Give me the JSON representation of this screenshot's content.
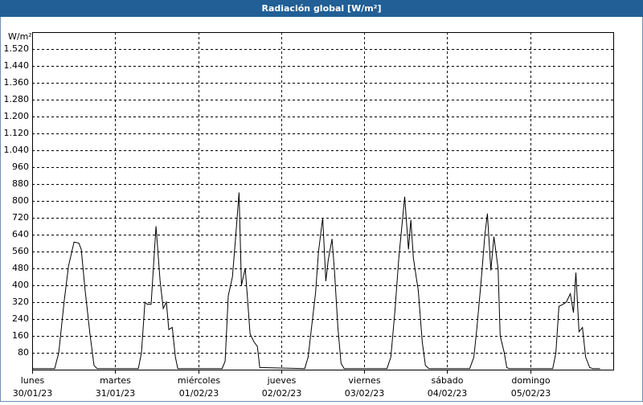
{
  "chart_data": {
    "type": "line",
    "title": "Radiación global [W/m²]",
    "y_unit": "W/m²",
    "x": [
      0,
      6.5,
      7.7,
      9.3,
      10.5,
      12.1,
      13.5,
      14.2,
      15.3,
      16.7,
      17.9,
      18.8,
      30.7,
      31.6,
      32.6,
      33.3,
      34.4,
      35.8,
      37.0,
      37.9,
      38.8,
      39.5,
      40.5,
      41.4,
      42.1,
      54.9,
      55.8,
      56.7,
      57.9,
      58.8,
      59.8,
      60.5,
      61.6,
      62.3,
      63.0,
      64.2,
      65.1,
      65.8,
      78.8,
      79.8,
      80.9,
      81.9,
      82.8,
      84.0,
      84.9,
      85.6,
      86.7,
      87.4,
      88.4,
      89.3,
      90.2,
      102.6,
      103.7,
      104.9,
      106.0,
      107.7,
      108.8,
      109.5,
      110.2,
      111.2,
      111.6,
      112.8,
      113.7,
      114.7,
      126.5,
      127.7,
      128.6,
      129.8,
      130.9,
      131.6,
      132.6,
      133.5,
      134.7,
      135.3,
      136.5,
      137.2,
      137.9,
      150.5,
      151.4,
      152.3,
      153.5,
      154.4,
      155.6,
      156.5,
      157.2,
      158.1,
      159.1,
      160.0,
      161.2,
      162.1,
      164.2
    ],
    "series": [
      {
        "color": "#000000",
        "values": [
          5,
          5,
          80,
          330,
          490,
          605,
          600,
          570,
          380,
          170,
          20,
          5,
          5,
          80,
          320,
          310,
          310,
          680,
          420,
          290,
          320,
          190,
          200,
          60,
          5,
          5,
          40,
          350,
          440,
          620,
          840,
          400,
          480,
          330,
          170,
          130,
          110,
          10,
          5,
          60,
          220,
          360,
          560,
          720,
          420,
          520,
          620,
          470,
          200,
          30,
          5,
          5,
          60,
          280,
          530,
          820,
          570,
          710,
          530,
          420,
          380,
          130,
          20,
          5,
          5,
          60,
          200,
          420,
          640,
          740,
          470,
          630,
          480,
          160,
          80,
          10,
          5,
          5,
          80,
          300,
          310,
          320,
          360,
          270,
          460,
          180,
          200,
          60,
          10,
          5,
          5
        ]
      }
    ],
    "xlim": [
      0,
      168
    ],
    "xticks": [
      0,
      24,
      48,
      72,
      96,
      120,
      144
    ],
    "xtick_days": [
      "lunes",
      "martes",
      "miércoles",
      "jueves",
      "viernes",
      "sábado",
      "domingo"
    ],
    "xtick_dates": [
      "30/01/23",
      "31/01/23",
      "01/02/23",
      "02/02/23",
      "03/02/23",
      "04/02/23",
      "05/02/23"
    ],
    "ylim": [
      0,
      1600
    ],
    "yticks": [
      80,
      160,
      240,
      320,
      400,
      480,
      560,
      640,
      720,
      800,
      880,
      960,
      {
        "value": 1040,
        "label": "1.040"
      },
      {
        "value": 1120,
        "label": "1.120"
      },
      {
        "value": 1200,
        "label": "1.200"
      },
      {
        "value": 1280,
        "label": "1.280"
      },
      {
        "value": 1360,
        "label": "1.360"
      },
      {
        "value": 1440,
        "label": "1.440"
      },
      {
        "value": 1520,
        "label": "1.520"
      }
    ],
    "grid": true
  }
}
